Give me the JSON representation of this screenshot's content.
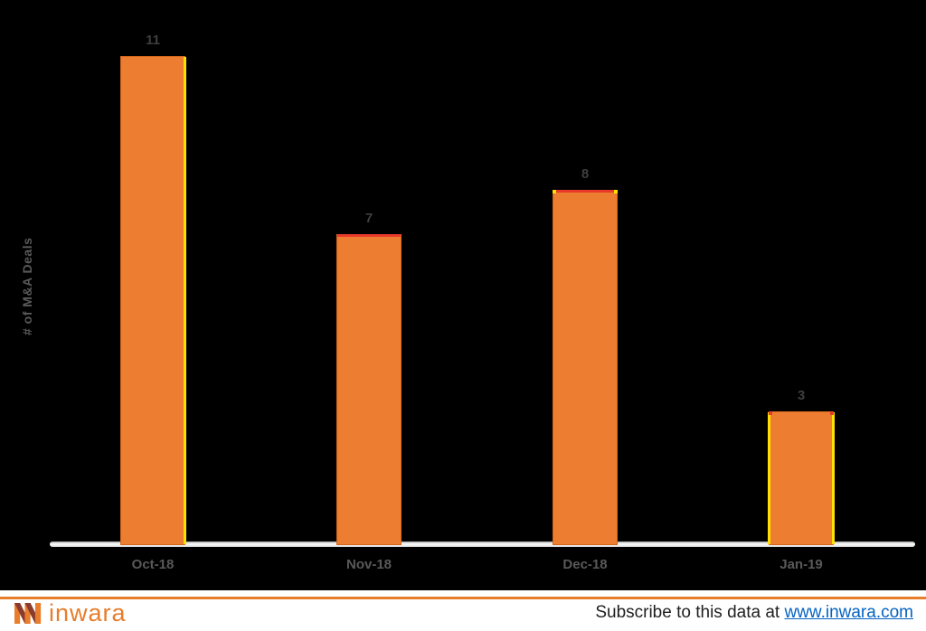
{
  "chart_data": {
    "type": "bar",
    "categories": [
      "Oct-18",
      "Nov-18",
      "Dec-18",
      "Jan-19"
    ],
    "values": [
      11,
      7,
      8,
      3
    ],
    "value_labels": [
      "11",
      "7",
      "8",
      "3"
    ],
    "title": "",
    "xlabel": "",
    "ylabel": "# of M&A Deals",
    "ylim": [
      0,
      11.5
    ],
    "grid": false,
    "legend": false,
    "bar_color": "#ED7D31",
    "bar_border_color": "#D2661A",
    "accent_yellow": "#FFE100",
    "accent_red": "#E8392B",
    "bar_accents": [
      [
        "right:yellow"
      ],
      [
        "top:red"
      ],
      [
        "top:red",
        "corners:yellow"
      ],
      [
        "left:yellow",
        "right:yellow",
        "corners:red"
      ]
    ],
    "value_label_color": "#3F3F3F",
    "tick_label_color": "#595959",
    "axis_line_color": "#D9D9D9"
  },
  "footer": {
    "logo_text": "inwara",
    "logo_color": "#E87D2B",
    "logo_dark_color": "#8B3A2E",
    "rule_color": "#E87D2B",
    "subscribe_text": "Subscribe to this data at",
    "link_text": "www.inwara.com",
    "link_color": "#0563C1"
  }
}
